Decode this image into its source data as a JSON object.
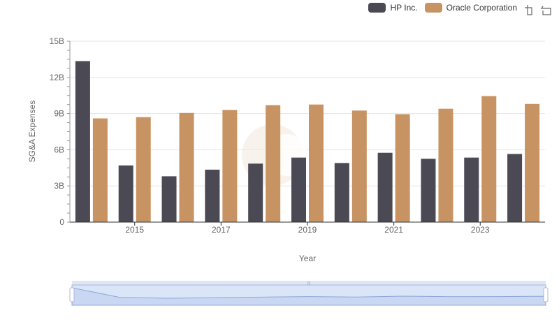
{
  "legend": {
    "series_a": "HP Inc.",
    "series_b": "Oracle Corporation"
  },
  "toolbox": {
    "zoom_icon": "data-zoom-icon",
    "restore_icon": "restore-icon"
  },
  "colors": {
    "hp": "#4a4954",
    "oracle": "#c89362",
    "grid": "#e6e6e6",
    "slider_fill": "#dbe5f8",
    "slider_border": "#aab8d8"
  },
  "chart_data": {
    "type": "bar",
    "xlabel": "Year",
    "ylabel": "SG&A Expenses",
    "ylim": [
      0,
      15
    ],
    "y_unit": "B",
    "yticks": [
      "0",
      "3B",
      "6B",
      "9B",
      "12B",
      "15B"
    ],
    "xtick_labels": [
      "2015",
      "2017",
      "2019",
      "2021",
      "2023"
    ],
    "categories": [
      "2014",
      "2015",
      "2016",
      "2017",
      "2018",
      "2019",
      "2020",
      "2021",
      "2022",
      "2023",
      "2024"
    ],
    "series": [
      {
        "name": "HP Inc.",
        "values": [
          13.35,
          4.7,
          3.8,
          4.35,
          4.85,
          5.35,
          4.9,
          5.75,
          5.25,
          5.35,
          5.65
        ]
      },
      {
        "name": "Oracle Corporation",
        "values": [
          8.6,
          8.7,
          9.05,
          9.3,
          9.7,
          9.75,
          9.25,
          8.95,
          9.4,
          10.45,
          9.8
        ]
      }
    ]
  }
}
